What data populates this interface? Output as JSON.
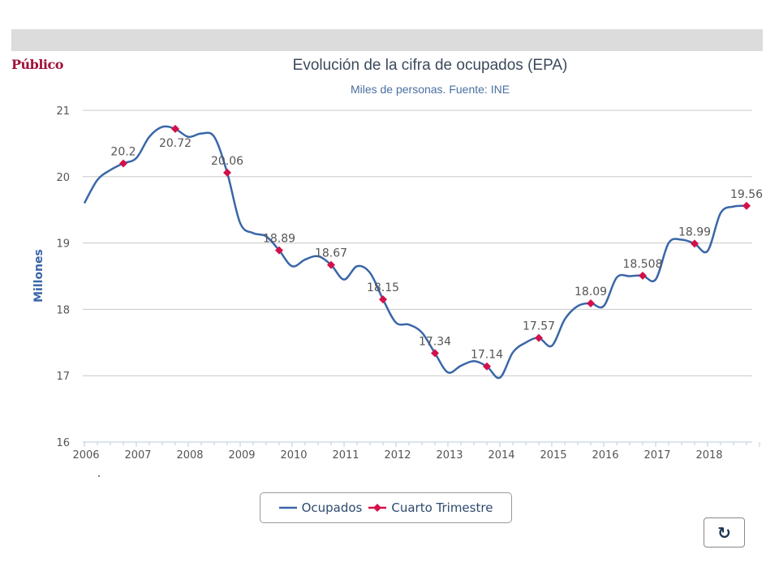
{
  "logo": "Público",
  "chart_data": {
    "type": "line",
    "title": "Evolución de la cifra de ocupados (EPA)",
    "subtitle": "Miles de personas. Fuente: INE",
    "ylabel": "Millones",
    "xlabel": "",
    "ylim": [
      16,
      21
    ],
    "yticks": [
      "16",
      "17",
      "18",
      "19",
      "20",
      "21"
    ],
    "xlim": [
      2006,
      2019
    ],
    "xticks": [
      "2006",
      "2007",
      "2008",
      "2009",
      "2010",
      "2011",
      "2012",
      "2013",
      "2014",
      "2015",
      "2016",
      "2017",
      "2018"
    ],
    "grid": true,
    "legend_position": "bottom",
    "series": [
      {
        "name": "Ocupados",
        "color": "#3a66a8",
        "x": [
          2006,
          2006.25,
          2006.5,
          2006.75,
          2007,
          2007.25,
          2007.5,
          2007.75,
          2008,
          2008.25,
          2008.5,
          2008.75,
          2009,
          2009.25,
          2009.5,
          2009.75,
          2010,
          2010.25,
          2010.5,
          2010.75,
          2011,
          2011.25,
          2011.5,
          2011.75,
          2012,
          2012.25,
          2012.5,
          2012.75,
          2013,
          2013.25,
          2013.5,
          2013.75,
          2014,
          2014.25,
          2014.5,
          2014.75,
          2015,
          2015.25,
          2015.5,
          2015.75,
          2016,
          2016.25,
          2016.5,
          2016.75,
          2017,
          2017.25,
          2017.5,
          2017.75,
          2018,
          2018.25,
          2018.5,
          2018.75
        ],
        "values": [
          19.6,
          19.95,
          20.1,
          20.2,
          20.28,
          20.6,
          20.75,
          20.72,
          20.6,
          20.65,
          20.6,
          20.06,
          19.3,
          19.15,
          19.1,
          18.89,
          18.65,
          18.75,
          18.8,
          18.67,
          18.45,
          18.65,
          18.55,
          18.15,
          17.8,
          17.77,
          17.65,
          17.34,
          17.05,
          17.15,
          17.22,
          17.14,
          16.97,
          17.35,
          17.5,
          17.57,
          17.45,
          17.85,
          18.05,
          18.09,
          18.05,
          18.48,
          18.5,
          18.508,
          18.45,
          19.0,
          19.05,
          18.99,
          18.88,
          19.45,
          19.55,
          19.56
        ]
      },
      {
        "name": "Cuarto Trimestre",
        "color": "#d4104a",
        "x": [
          2006.75,
          2007.75,
          2008.75,
          2009.75,
          2010.75,
          2011.75,
          2012.75,
          2013.75,
          2014.75,
          2015.75,
          2016.75,
          2017.75,
          2018.75
        ],
        "values": [
          20.2,
          20.72,
          20.06,
          18.89,
          18.67,
          18.15,
          17.34,
          17.14,
          17.57,
          18.09,
          18.508,
          18.99,
          19.56
        ],
        "labels": [
          "20.2",
          "20.72",
          "20.06",
          "18.89",
          "18.67",
          "18.15",
          "17.34",
          "17.14",
          "17.57",
          "18.09",
          "18.508",
          "18.99",
          "19.56"
        ]
      }
    ]
  },
  "legend": [
    "Ocupados",
    "Cuarto Trimestre"
  ],
  "refresh_icon": "refresh-icon"
}
